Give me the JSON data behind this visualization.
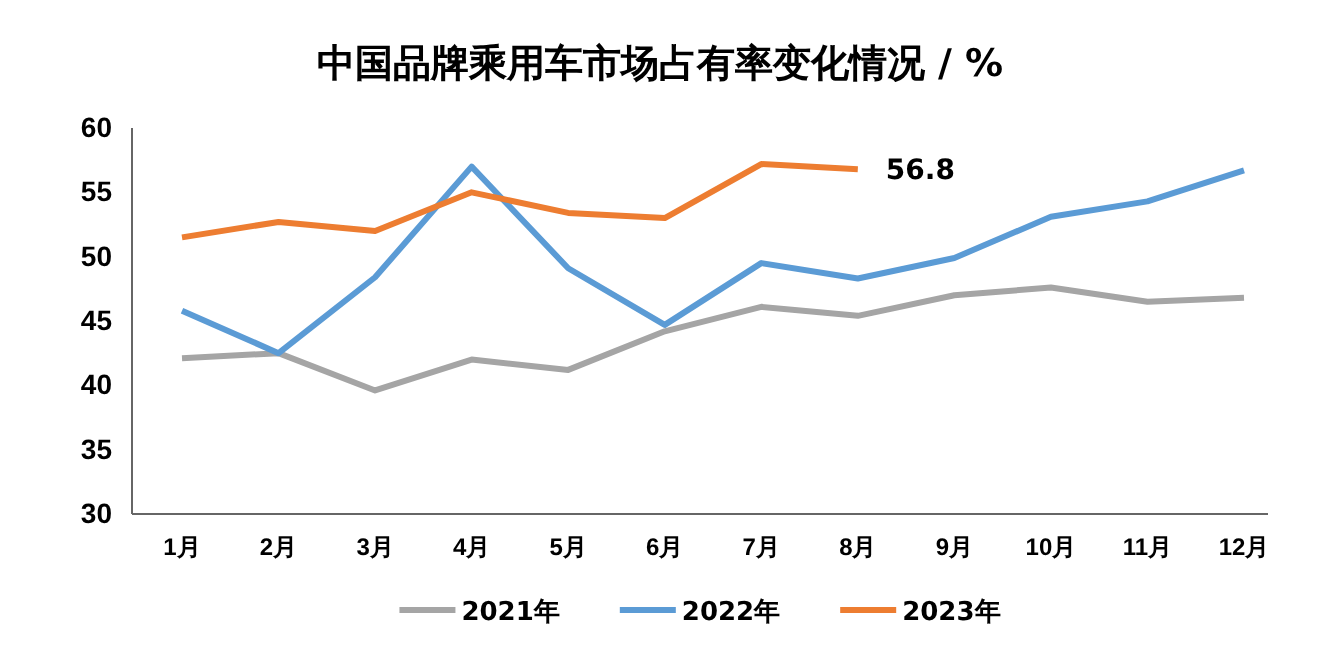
{
  "chart_data": {
    "type": "line",
    "title": "中国品牌乘用车市场占有率变化情况 / %",
    "categories": [
      "1月",
      "2月",
      "3月",
      "4月",
      "5月",
      "6月",
      "7月",
      "8月",
      "9月",
      "10月",
      "11月",
      "12月"
    ],
    "series": [
      {
        "name": "2021年",
        "color": "#a5a5a5",
        "values": [
          42.1,
          42.5,
          39.6,
          42.0,
          41.2,
          44.2,
          46.1,
          45.4,
          47.0,
          47.6,
          46.5,
          46.8
        ]
      },
      {
        "name": "2022年",
        "color": "#5b9bd5",
        "values": [
          45.8,
          42.5,
          48.4,
          57.0,
          49.1,
          44.7,
          49.5,
          48.3,
          49.9,
          53.1,
          54.3,
          56.7
        ]
      },
      {
        "name": "2023年",
        "color": "#ed7d31",
        "values": [
          51.5,
          52.7,
          52.0,
          55.0,
          53.4,
          53.0,
          57.2,
          56.8,
          null,
          null,
          null,
          null
        ]
      }
    ],
    "annotations": [
      {
        "text": "56.8",
        "x": "8月",
        "y": 56.8
      }
    ],
    "ylim": [
      30,
      60
    ],
    "yticks": [
      30,
      35,
      40,
      45,
      50,
      55,
      60
    ],
    "grid": false,
    "legend": "bottom",
    "marker": "none",
    "line_style": "solid"
  }
}
